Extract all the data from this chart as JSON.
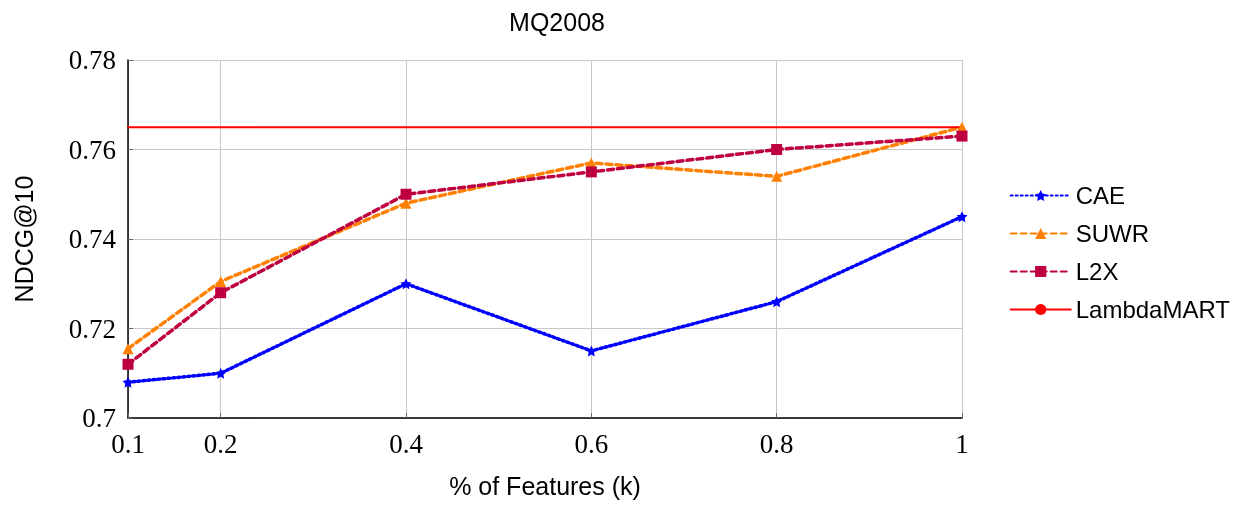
{
  "chart_data": {
    "type": "line",
    "title": "MQ2008",
    "xlabel": "% of Features (k)",
    "ylabel": "NDCG@10",
    "x": [
      0.1,
      0.2,
      0.4,
      0.6,
      0.8,
      1
    ],
    "series": [
      {
        "name": "CAE",
        "color": "#0000ff",
        "marker": "star",
        "line_style": "dotted",
        "values": [
          0.708,
          0.71,
          0.73,
          0.715,
          0.726,
          0.745
        ]
      },
      {
        "name": "SUWR",
        "color": "#ff8000",
        "marker": "triangle",
        "line_style": "dashed",
        "values": [
          0.7155,
          0.7305,
          0.748,
          0.757,
          0.754,
          0.765
        ]
      },
      {
        "name": "L2X",
        "color": "#bf0040",
        "marker": "square",
        "line_style": "dashed",
        "values": [
          0.712,
          0.728,
          0.75,
          0.755,
          0.76,
          0.763
        ]
      },
      {
        "name": "LambdaMART",
        "color": "#ff0000",
        "marker": "none",
        "line_style": "solid",
        "x": [
          0.1,
          1
        ],
        "values": [
          0.765,
          0.765
        ]
      }
    ],
    "xlim": [
      0.1,
      1
    ],
    "xticks": [
      0.1,
      0.2,
      0.4,
      0.6,
      0.8,
      1
    ],
    "ylim": [
      0.7,
      0.78
    ],
    "yticks": [
      0.7,
      0.72,
      0.74,
      0.76,
      0.78
    ],
    "grid": true,
    "legend": "right"
  }
}
